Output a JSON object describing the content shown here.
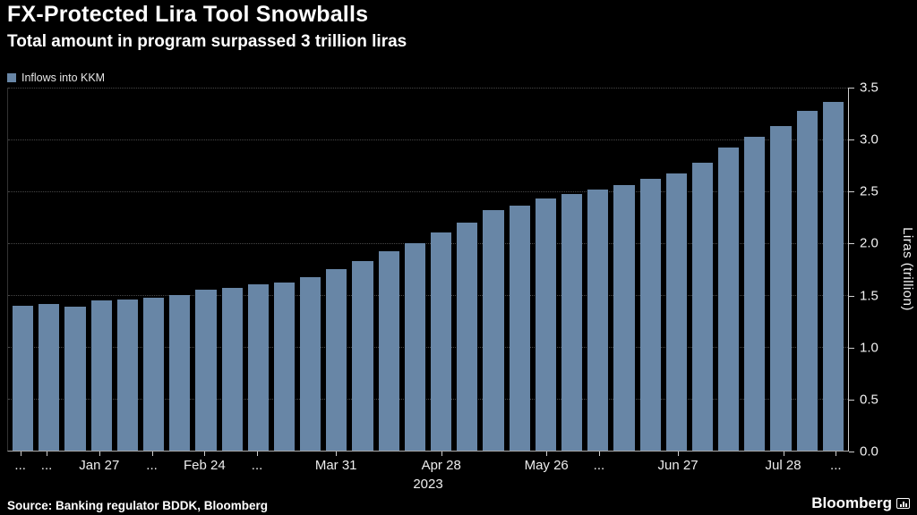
{
  "header": {
    "title": "FX-Protected Lira Tool Snowballs",
    "subtitle": "Total amount in program surpassed 3 trillion liras"
  },
  "legend": {
    "label": "Inflows into KKM",
    "swatch_color": "#6886a6"
  },
  "chart_data": {
    "type": "bar",
    "title": "FX-Protected Lira Tool Snowballs",
    "subtitle": "Total amount in program surpassed 3 trillion liras",
    "legend_entries": [
      "Inflows into KKM"
    ],
    "bar_color": "#6886a6",
    "xlabel": "",
    "ylabel": "Liras (trillion)",
    "ylim": [
      0,
      3.5
    ],
    "yticks": [
      0.0,
      0.5,
      1.0,
      1.5,
      2.0,
      2.5,
      3.0,
      3.5
    ],
    "grid": "dotted-horizontal",
    "legend_position": "top-left",
    "year_label": "2023",
    "values": [
      1.4,
      1.41,
      1.39,
      1.45,
      1.46,
      1.47,
      1.5,
      1.55,
      1.57,
      1.6,
      1.62,
      1.67,
      1.75,
      1.83,
      1.92,
      2.0,
      2.1,
      2.2,
      2.32,
      2.36,
      2.43,
      2.47,
      2.52,
      2.56,
      2.62,
      2.67,
      2.78,
      2.92,
      3.03,
      3.13,
      3.28,
      3.36
    ],
    "xticks": [
      {
        "label": "...",
        "index": 0
      },
      {
        "label": "...",
        "index": 1
      },
      {
        "label": "Jan 27",
        "index": 3
      },
      {
        "label": "...",
        "index": 5
      },
      {
        "label": "Feb 24",
        "index": 7
      },
      {
        "label": "...",
        "index": 9
      },
      {
        "label": "Mar 31",
        "index": 12
      },
      {
        "label": "Apr 28",
        "index": 16
      },
      {
        "label": "May 26",
        "index": 20
      },
      {
        "label": "...",
        "index": 22
      },
      {
        "label": "Jun 27",
        "index": 25
      },
      {
        "label": "Jul 28",
        "index": 29
      },
      {
        "label": "...",
        "index": 31
      }
    ]
  },
  "footer": {
    "source": "Source: Banking regulator BDDK, Bloomberg",
    "brand": "Bloomberg"
  }
}
